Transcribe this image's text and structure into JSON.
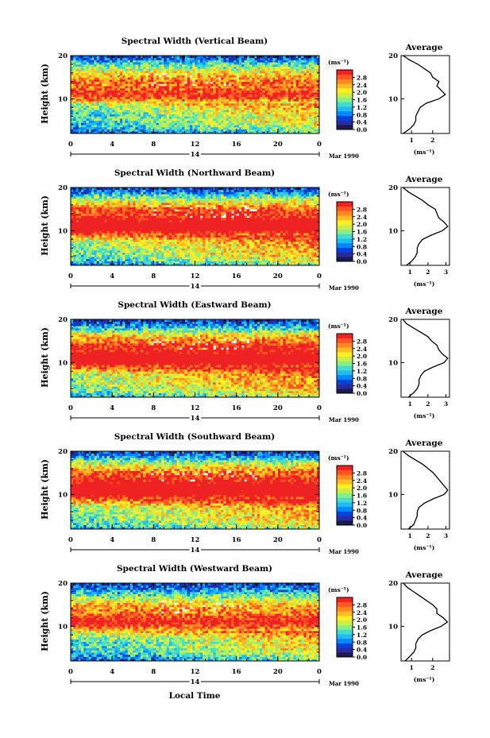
{
  "chart_data": {
    "type": "heatmap",
    "xlabel": "Local Time",
    "date_label": "Mar 1990",
    "day_label": "14",
    "x_ticks": [
      "0",
      "4",
      "8",
      "12",
      "16",
      "20",
      "0"
    ],
    "xlim": [
      0,
      24
    ],
    "ylabel": "Height (km)",
    "y_ticks": [
      "20",
      "10"
    ],
    "ylim": [
      2,
      20
    ],
    "colorbar": {
      "unit": "(ms⁻¹)",
      "ticks": [
        "2.8",
        "2.4",
        "2.0",
        "1.6",
        "1.2",
        "0.8",
        "0.4",
        "0.0"
      ],
      "range": [
        0,
        3.2
      ],
      "colors": [
        "#1a1a50",
        "#2a2aa0",
        "#0044dd",
        "#0088ff",
        "#22bbee",
        "#44ddcc",
        "#88ee88",
        "#ccee44",
        "#ffee22",
        "#ffbb22",
        "#ff8822",
        "#ff5522",
        "#ee2222"
      ]
    },
    "panels": [
      {
        "title": "Spectral Width (Vertical Beam)",
        "profile": {
          "title": "Average",
          "unit": "(ms⁻¹)",
          "x_ticks": [
            "1",
            "2"
          ],
          "x_tick_values": [
            1,
            2
          ],
          "xlim": [
            0.5,
            2.8
          ],
          "y_ticks": [
            "20",
            "10"
          ],
          "heights": [
            2,
            3,
            4,
            5,
            6,
            7,
            8,
            9,
            10,
            11,
            12,
            13,
            14,
            15,
            16,
            17,
            18,
            19,
            20
          ],
          "values": [
            0.6,
            0.9,
            1.1,
            1.2,
            1.2,
            1.3,
            1.4,
            1.7,
            2.3,
            2.6,
            2.4,
            2.2,
            2.3,
            2.0,
            1.9,
            1.6,
            1.3,
            0.9,
            0.6
          ]
        }
      },
      {
        "title": "Spectral Width (Northward Beam)",
        "profile": {
          "title": "Average",
          "unit": "(ms⁻¹)",
          "x_ticks": [
            "1",
            "2",
            "3"
          ],
          "x_tick_values": [
            1,
            2,
            3
          ],
          "xlim": [
            0.5,
            3.2
          ],
          "y_ticks": [
            "20",
            "10"
          ],
          "heights": [
            2,
            3,
            4,
            5,
            6,
            7,
            8,
            9,
            10,
            11,
            12,
            13,
            14,
            15,
            16,
            17,
            18,
            19,
            20
          ],
          "values": [
            0.8,
            1.1,
            1.3,
            1.4,
            1.4,
            1.5,
            1.7,
            2.2,
            2.8,
            3.1,
            2.9,
            2.6,
            2.5,
            2.4,
            2.0,
            1.7,
            1.3,
            0.9,
            0.6
          ]
        }
      },
      {
        "title": "Spectral Width (Eastward Beam)",
        "profile": {
          "title": "Average",
          "unit": "(ms⁻¹)",
          "x_ticks": [
            "1",
            "2",
            "3"
          ],
          "x_tick_values": [
            1,
            2,
            3
          ],
          "xlim": [
            0.5,
            3.2
          ],
          "y_ticks": [
            "20",
            "10"
          ],
          "heights": [
            2,
            3,
            4,
            5,
            6,
            7,
            8,
            9,
            10,
            11,
            12,
            13,
            14,
            15,
            16,
            17,
            18,
            19,
            20
          ],
          "values": [
            0.9,
            1.2,
            1.4,
            1.5,
            1.5,
            1.6,
            1.8,
            2.3,
            2.9,
            3.1,
            2.8,
            2.6,
            2.5,
            2.2,
            2.0,
            1.6,
            1.2,
            0.8,
            0.6
          ]
        }
      },
      {
        "title": "Spectral Width (Southward Beam)",
        "profile": {
          "title": "Average",
          "unit": "(ms⁻¹)",
          "x_ticks": [
            "1",
            "2",
            "3"
          ],
          "x_tick_values": [
            1,
            2,
            3
          ],
          "xlim": [
            0.5,
            3.2
          ],
          "y_ticks": [
            "20",
            "10"
          ],
          "heights": [
            2,
            3,
            4,
            5,
            6,
            7,
            8,
            9,
            10,
            11,
            12,
            13,
            14,
            15,
            16,
            17,
            18,
            19,
            20
          ],
          "values": [
            0.9,
            1.2,
            1.3,
            1.4,
            1.4,
            1.5,
            1.8,
            2.3,
            2.9,
            3.1,
            2.9,
            2.7,
            2.5,
            2.3,
            2.0,
            1.7,
            1.3,
            0.9,
            0.6
          ]
        }
      },
      {
        "title": "Spectral Width (Westward Beam)",
        "profile": {
          "title": "Average",
          "unit": "(ms⁻¹)",
          "x_ticks": [
            "1",
            "2"
          ],
          "x_tick_values": [
            1,
            2
          ],
          "xlim": [
            0.5,
            2.8
          ],
          "y_ticks": [
            "20",
            "10"
          ],
          "heights": [
            2,
            3,
            4,
            5,
            6,
            7,
            8,
            9,
            10,
            11,
            12,
            13,
            14,
            15,
            16,
            17,
            18,
            19,
            20
          ],
          "values": [
            0.7,
            0.9,
            1.1,
            1.2,
            1.2,
            1.3,
            1.5,
            1.9,
            2.4,
            2.7,
            2.5,
            2.2,
            2.2,
            2.0,
            1.7,
            1.4,
            1.1,
            0.8,
            0.6
          ]
        }
      }
    ]
  }
}
